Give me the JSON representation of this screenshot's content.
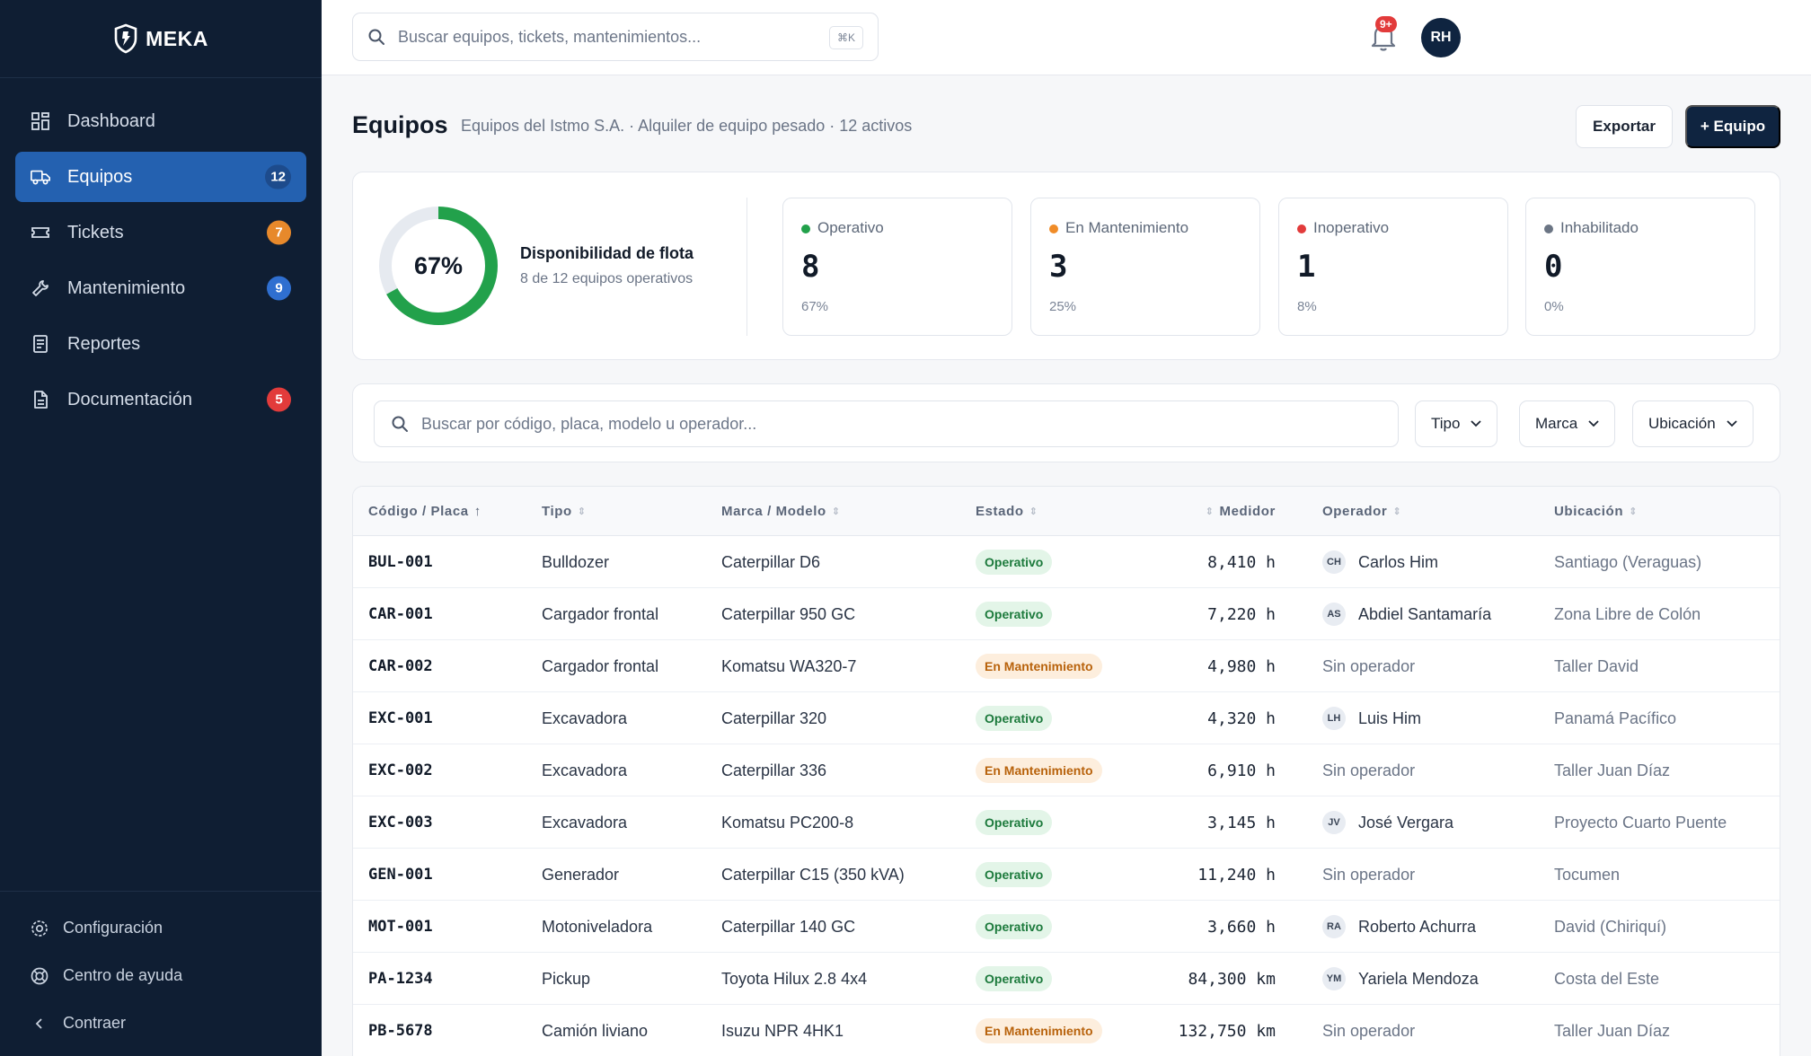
{
  "brand": {
    "name": "MEKA"
  },
  "sidebar": {
    "items": [
      {
        "label": "Dashboard",
        "icon": "grid-icon",
        "badge": ""
      },
      {
        "label": "Equipos",
        "icon": "truck-icon",
        "badge": "12",
        "active": true,
        "badge_color": "#1d4b8c"
      },
      {
        "label": "Tickets",
        "icon": "ticket-icon",
        "badge": "7",
        "badge_color": "#e7892b"
      },
      {
        "label": "Mantenimiento",
        "icon": "wrench-icon",
        "badge": "9",
        "badge_color": "#2f6fd0"
      },
      {
        "label": "Reportes",
        "icon": "report-icon",
        "badge": ""
      },
      {
        "label": "Documentación",
        "icon": "document-icon",
        "badge": "5",
        "badge_color": "#e23b3b"
      }
    ],
    "bottom": [
      {
        "label": "Configuración",
        "icon": "gear-icon"
      },
      {
        "label": "Centro de ayuda",
        "icon": "lifebuoy-icon"
      },
      {
        "label": "Contraer",
        "icon": "chevron-left-icon"
      }
    ]
  },
  "topbar": {
    "search_placeholder": "Buscar equipos, tickets, mantenimientos...",
    "shortcut": "⌘K",
    "notifications_badge": "9+",
    "avatar_initials": "RH"
  },
  "page": {
    "title": "Equipos",
    "subtitle": "Equipos del Istmo S.A. · Alquiler de equipo pesado · 12 activos",
    "export_label": "Exportar",
    "add_label": "+ Equipo"
  },
  "summary": {
    "availability_pct_label": "67%",
    "availability_fraction": 0.67,
    "availability_title": "Disponibilidad de flota",
    "availability_sub": "8 de 12 equipos operativos",
    "stats": [
      {
        "label": "Operativo",
        "value": "8",
        "pct": "67%",
        "color": "#22a14b"
      },
      {
        "label": "En Mantenimiento",
        "value": "3",
        "pct": "25%",
        "color": "#f08c28"
      },
      {
        "label": "Inoperativo",
        "value": "1",
        "pct": "8%",
        "color": "#e23b3b"
      },
      {
        "label": "Inhabilitado",
        "value": "0",
        "pct": "0%",
        "color": "#6b7584"
      }
    ]
  },
  "filters": {
    "search_placeholder": "Buscar por código, placa, modelo u operador...",
    "type_label": "Tipo",
    "brand_label": "Marca",
    "location_label": "Ubicación"
  },
  "table": {
    "headers": {
      "code": "Código / Placa",
      "type": "Tipo",
      "model": "Marca / Modelo",
      "status": "Estado",
      "meter": "Medidor",
      "operator": "Operador",
      "location": "Ubicación"
    },
    "rows": [
      {
        "code": "BUL-001",
        "type": "Bulldozer",
        "model": "Caterpillar D6",
        "status": "Operativo",
        "meter": "8,410 h",
        "op_initials": "CH",
        "operator": "Carlos Him",
        "location": "Santiago (Veraguas)"
      },
      {
        "code": "CAR-001",
        "type": "Cargador frontal",
        "model": "Caterpillar 950 GC",
        "status": "Operativo",
        "meter": "7,220 h",
        "op_initials": "AS",
        "operator": "Abdiel Santamaría",
        "location": "Zona Libre de Colón"
      },
      {
        "code": "CAR-002",
        "type": "Cargador frontal",
        "model": "Komatsu WA320-7",
        "status": "En Mantenimiento",
        "meter": "4,980 h",
        "op_initials": "",
        "operator": "Sin operador",
        "location": "Taller David"
      },
      {
        "code": "EXC-001",
        "type": "Excavadora",
        "model": "Caterpillar 320",
        "status": "Operativo",
        "meter": "4,320 h",
        "op_initials": "LH",
        "operator": "Luis Him",
        "location": "Panamá Pacífico"
      },
      {
        "code": "EXC-002",
        "type": "Excavadora",
        "model": "Caterpillar 336",
        "status": "En Mantenimiento",
        "meter": "6,910 h",
        "op_initials": "",
        "operator": "Sin operador",
        "location": "Taller Juan Díaz"
      },
      {
        "code": "EXC-003",
        "type": "Excavadora",
        "model": "Komatsu PC200-8",
        "status": "Operativo",
        "meter": "3,145 h",
        "op_initials": "JV",
        "operator": "José Vergara",
        "location": "Proyecto Cuarto Puente"
      },
      {
        "code": "GEN-001",
        "type": "Generador",
        "model": "Caterpillar C15 (350 kVA)",
        "status": "Operativo",
        "meter": "11,240 h",
        "op_initials": "",
        "operator": "Sin operador",
        "location": "Tocumen"
      },
      {
        "code": "MOT-001",
        "type": "Motoniveladora",
        "model": "Caterpillar 140 GC",
        "status": "Operativo",
        "meter": "3,660 h",
        "op_initials": "RA",
        "operator": "Roberto Achurra",
        "location": "David (Chiriquí)"
      },
      {
        "code": "PA-1234",
        "type": "Pickup",
        "model": "Toyota Hilux 2.8 4x4",
        "status": "Operativo",
        "meter": "84,300 km",
        "op_initials": "YM",
        "operator": "Yariela Mendoza",
        "location": "Costa del Este"
      },
      {
        "code": "PB-5678",
        "type": "Camión liviano",
        "model": "Isuzu NPR 4HK1",
        "status": "En Mantenimiento",
        "meter": "132,750 km",
        "op_initials": "",
        "operator": "Sin operador",
        "location": "Taller Juan Díaz"
      }
    ]
  }
}
